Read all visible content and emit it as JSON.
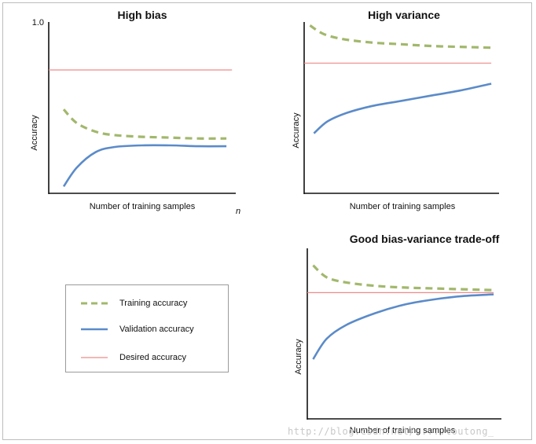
{
  "colors": {
    "training": "#a2b86c",
    "validation": "#5b8bc9",
    "desired": "#ef8a8a",
    "axis": "#111111"
  },
  "chart_data": [
    {
      "type": "line",
      "title": "High bias",
      "xlabel": "Number of training samples",
      "ylabel": "Accuracy",
      "x_end_label": "n",
      "ytick_labels": [
        "1.0"
      ],
      "ylim": [
        0,
        1
      ],
      "xlim": [
        0,
        1
      ],
      "grid": false,
      "series": [
        {
          "name": "Training accuracy",
          "style": "dashed",
          "x": [
            0.08,
            0.15,
            0.25,
            0.35,
            0.5,
            0.65,
            0.8,
            0.95
          ],
          "y": [
            0.49,
            0.41,
            0.36,
            0.34,
            0.33,
            0.325,
            0.32,
            0.32
          ]
        },
        {
          "name": "Validation accuracy",
          "style": "solid",
          "x": [
            0.08,
            0.15,
            0.25,
            0.35,
            0.5,
            0.65,
            0.8,
            0.95
          ],
          "y": [
            0.04,
            0.15,
            0.24,
            0.27,
            0.28,
            0.28,
            0.275,
            0.275
          ]
        },
        {
          "name": "Desired accuracy",
          "style": "solid-thin",
          "x": [
            0.0,
            0.98
          ],
          "y": [
            0.72,
            0.72
          ]
        }
      ]
    },
    {
      "type": "line",
      "title": "High variance",
      "xlabel": "Number of training samples",
      "ylabel": "Accuracy",
      "ylim": [
        0,
        1
      ],
      "xlim": [
        0,
        1
      ],
      "grid": false,
      "series": [
        {
          "name": "Training accuracy",
          "style": "dashed",
          "x": [
            0.03,
            0.1,
            0.2,
            0.35,
            0.5,
            0.65,
            0.8,
            0.96
          ],
          "y": [
            0.98,
            0.93,
            0.9,
            0.88,
            0.87,
            0.86,
            0.855,
            0.85
          ]
        },
        {
          "name": "Validation accuracy",
          "style": "solid",
          "x": [
            0.05,
            0.12,
            0.22,
            0.35,
            0.5,
            0.65,
            0.8,
            0.96
          ],
          "y": [
            0.35,
            0.42,
            0.47,
            0.51,
            0.54,
            0.57,
            0.6,
            0.64
          ]
        },
        {
          "name": "Desired accuracy",
          "style": "solid-thin",
          "x": [
            0.0,
            0.96
          ],
          "y": [
            0.76,
            0.76
          ]
        }
      ]
    },
    {
      "type": "line",
      "title": "Good bias-variance trade-off",
      "xlabel": "Number of training samples",
      "ylabel": "Accuracy",
      "ylim": [
        0,
        1
      ],
      "xlim": [
        0,
        1
      ],
      "grid": false,
      "series": [
        {
          "name": "Training accuracy",
          "style": "dashed",
          "x": [
            0.03,
            0.1,
            0.2,
            0.35,
            0.5,
            0.65,
            0.8,
            0.96
          ],
          "y": [
            0.9,
            0.83,
            0.8,
            0.78,
            0.77,
            0.765,
            0.76,
            0.755
          ]
        },
        {
          "name": "Validation accuracy",
          "style": "solid",
          "x": [
            0.03,
            0.1,
            0.2,
            0.35,
            0.5,
            0.65,
            0.8,
            0.96
          ],
          "y": [
            0.35,
            0.47,
            0.55,
            0.62,
            0.67,
            0.7,
            0.72,
            0.73
          ]
        },
        {
          "name": "Desired accuracy",
          "style": "solid-thin",
          "x": [
            0.0,
            0.96
          ],
          "y": [
            0.74,
            0.74
          ]
        }
      ]
    }
  ],
  "legend": {
    "placement": "bottom-left",
    "items": [
      {
        "label": "Training accuracy"
      },
      {
        "label": "Validation accuracy"
      },
      {
        "label": "Desired accuracy"
      }
    ]
  },
  "watermark": "http://blog.csdn.net/.....toutong_"
}
